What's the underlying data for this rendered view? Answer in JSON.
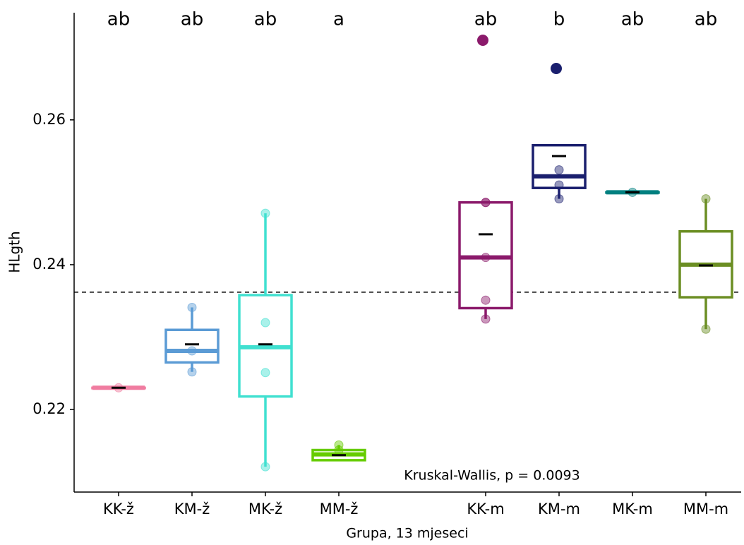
{
  "chart_data": {
    "type": "box",
    "x_label": "Grupa, 13 mjeseci",
    "y_label": "HLgth",
    "annotation": "Kruskal-Wallis, p =  0.0093",
    "categories": [
      "KK-ž",
      "KM-ž",
      "MK-ž",
      "MM-ž",
      null,
      "KK-m",
      "KM-m",
      "MK-m",
      "MM-m"
    ],
    "boxes": [
      {
        "color": "#f07ca0",
        "low": 0.223,
        "q1": 0.223,
        "median": 0.223,
        "q3": 0.223,
        "high": 0.223,
        "mean": 0.223,
        "points": [
          0.223
        ],
        "outliers": [],
        "letter": "ab"
      },
      {
        "color": "#5b9bd5",
        "low": 0.2252,
        "q1": 0.2265,
        "median": 0.2281,
        "q3": 0.231,
        "high": 0.2341,
        "mean": 0.229,
        "points": [
          0.2341,
          0.2281,
          0.2252
        ],
        "outliers": [],
        "letter": "ab"
      },
      {
        "color": "#40e0d0",
        "low": 0.2121,
        "q1": 0.2218,
        "median": 0.2286,
        "q3": 0.2358,
        "high": 0.2471,
        "mean": 0.229,
        "points": [
          0.2471,
          0.232,
          0.2251,
          0.2121
        ],
        "outliers": [],
        "letter": "ab"
      },
      {
        "color": "#66cc00",
        "low": 0.213,
        "q1": 0.213,
        "median": 0.2138,
        "q3": 0.2144,
        "high": 0.2151,
        "mean": 0.2137,
        "points": [
          0.2151,
          0.2144
        ],
        "outliers": [],
        "letter": "a"
      },
      null,
      {
        "color": "#8b1a6b",
        "low": 0.2325,
        "q1": 0.234,
        "median": 0.241,
        "q3": 0.2486,
        "high": 0.2486,
        "mean": 0.2442,
        "points": [
          0.2486,
          0.2486,
          0.241,
          0.2351,
          0.2325
        ],
        "outliers": [
          0.271
        ],
        "letter": "ab"
      },
      {
        "color": "#1a1f6e",
        "low": 0.2491,
        "q1": 0.2506,
        "median": 0.2522,
        "q3": 0.2565,
        "high": 0.2565,
        "mean": 0.255,
        "points": [
          0.2531,
          0.251,
          0.2491
        ],
        "outliers": [
          0.2671
        ],
        "letter": "b"
      },
      {
        "color": "#008080",
        "low": 0.25,
        "q1": 0.25,
        "median": 0.25,
        "q3": 0.25,
        "high": 0.25,
        "mean": 0.25,
        "points": [
          0.25
        ],
        "outliers": [],
        "letter": "ab"
      },
      {
        "color": "#6b8e23",
        "low": 0.2311,
        "q1": 0.2355,
        "median": 0.24,
        "q3": 0.2446,
        "high": 0.2491,
        "mean": 0.2399,
        "points": [
          0.2491,
          0.2311
        ],
        "outliers": [],
        "letter": "ab"
      }
    ],
    "reference_line": 0.2362,
    "ylim": [
      0.2086,
      0.2748
    ],
    "yticks": [
      0.22,
      0.24,
      0.26
    ]
  }
}
